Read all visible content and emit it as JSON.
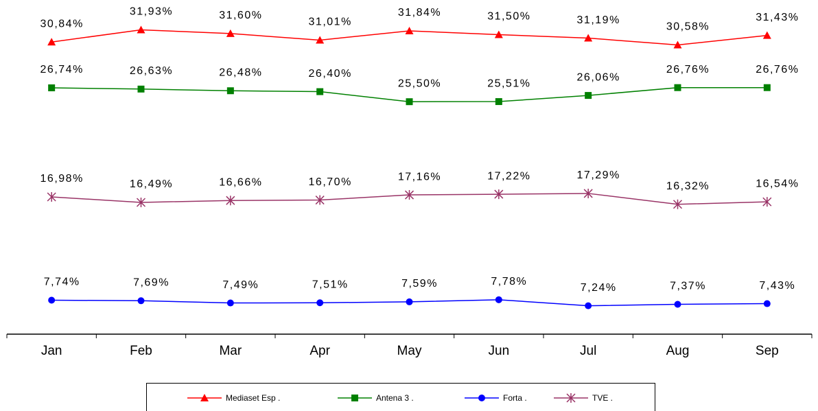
{
  "chart_data": {
    "type": "line",
    "categories": [
      "Jan",
      "Feb",
      "Mar",
      "Apr",
      "May",
      "Jun",
      "Jul",
      "Aug",
      "Sep"
    ],
    "ylim": [
      4.7,
      34.6
    ],
    "series": [
      {
        "name": "Mediaset Esp .",
        "color": "#ff0000",
        "marker": "triangle",
        "values": [
          30.84,
          31.93,
          31.6,
          31.01,
          31.84,
          31.5,
          31.19,
          30.58,
          31.43
        ],
        "value_labels": [
          "30,84%",
          "31,93%",
          "31,60%",
          "31,01%",
          "31,84%",
          "31,50%",
          "31,19%",
          "30,58%",
          "31,43%"
        ]
      },
      {
        "name": "Antena 3 .",
        "color": "#008000",
        "marker": "square",
        "values": [
          26.74,
          26.63,
          26.48,
          26.4,
          25.5,
          25.51,
          26.06,
          26.76,
          26.76
        ],
        "value_labels": [
          "26,74%",
          "26,63%",
          "26,48%",
          "26,40%",
          "25,50%",
          "25,51%",
          "26,06%",
          "26,76%",
          "26,76%"
        ]
      },
      {
        "name": "Forta .",
        "color": "#0000ff",
        "marker": "circle",
        "values": [
          7.74,
          7.69,
          7.49,
          7.51,
          7.59,
          7.78,
          7.24,
          7.37,
          7.43
        ],
        "value_labels": [
          "7,74%",
          "7,69%",
          "7,49%",
          "7,51%",
          "7,59%",
          "7,78%",
          "7,24%",
          "7,37%",
          "7,43%"
        ]
      },
      {
        "name": "TVE .",
        "color": "#993366",
        "marker": "star",
        "values": [
          16.98,
          16.49,
          16.66,
          16.7,
          17.16,
          17.22,
          17.29,
          16.32,
          16.54
        ],
        "value_labels": [
          "16,98%",
          "16,49%",
          "16,66%",
          "16,70%",
          "17,16%",
          "17,22%",
          "17,29%",
          "16,32%",
          "16,54%"
        ]
      }
    ],
    "legend": "bottom"
  }
}
